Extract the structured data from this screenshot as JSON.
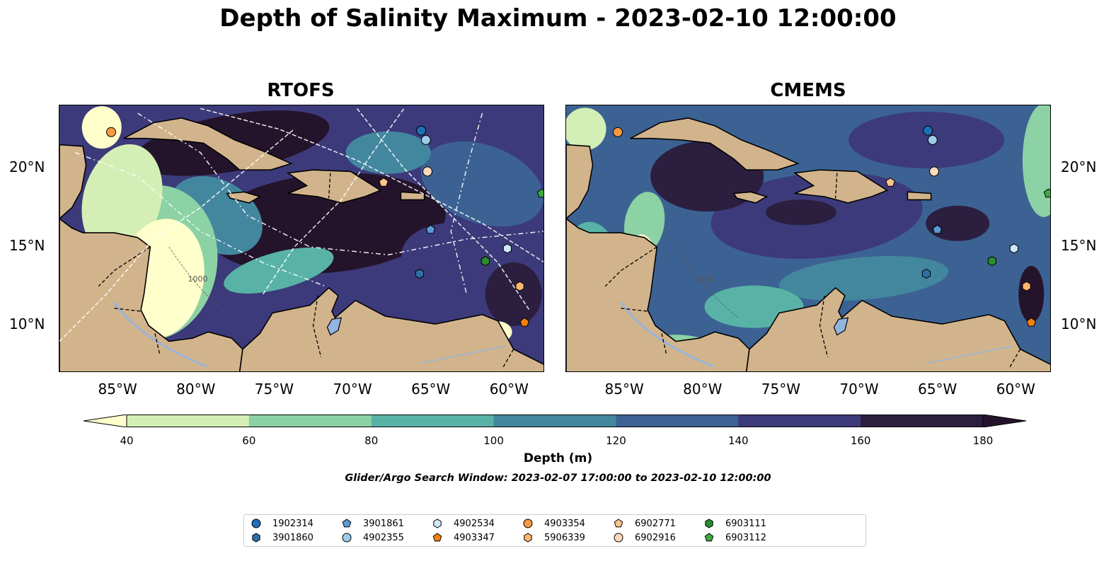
{
  "title": "Depth of Salinity Maximum - 2023-02-10 12:00:00",
  "panels": [
    {
      "name": "RTOFS"
    },
    {
      "name": "CMEMS"
    }
  ],
  "x_ticks": [
    "85°W",
    "80°W",
    "75°W",
    "70°W",
    "65°W",
    "60°W"
  ],
  "y_ticks": [
    "20°N",
    "15°N",
    "10°N"
  ],
  "map_extent": {
    "lon": [
      -89,
      -58
    ],
    "lat": [
      7,
      24
    ]
  },
  "contour_label": "1000",
  "colorbar": {
    "levels": [
      40,
      60,
      80,
      100,
      120,
      140,
      160,
      180
    ],
    "tick_labels": [
      "40",
      "60",
      "80",
      "100",
      "120",
      "140",
      "160",
      "180"
    ],
    "colors": [
      "#ffffcc",
      "#d4efb5",
      "#8cd2a4",
      "#58b3a6",
      "#43879e",
      "#3c6293",
      "#3c3a7a",
      "#2b1e3e",
      "#24142b"
    ],
    "label": "Depth (m)"
  },
  "search_window": "Glider/Argo Search Window: 2023-02-07 17:00:00 to 2023-02-10 12:00:00",
  "floats": [
    {
      "id": "1902314",
      "marker": "circle",
      "color": "#1f6fb4",
      "lon": -65.9,
      "lat": 22.4
    },
    {
      "id": "3901860",
      "marker": "hexagon",
      "color": "#2f6fa8",
      "lon": -66.0,
      "lat": 13.3
    },
    {
      "id": "3901861",
      "marker": "pentagon",
      "color": "#5b9bd5",
      "lon": -65.3,
      "lat": 16.1
    },
    {
      "id": "4902355",
      "marker": "circle",
      "color": "#9ccbeb",
      "lon": -65.6,
      "lat": 21.8
    },
    {
      "id": "4902534",
      "marker": "hexagon",
      "color": "#cfe6f6",
      "lon": -60.4,
      "lat": 14.9
    },
    {
      "id": "4903347",
      "marker": "pentagon",
      "color": "#f4800e",
      "lon": -59.3,
      "lat": 10.2
    },
    {
      "id": "4903354",
      "marker": "circle",
      "color": "#f79a3f",
      "lon": -85.7,
      "lat": 22.3
    },
    {
      "id": "5906339",
      "marker": "hexagon",
      "color": "#fbb66e",
      "lon": -59.6,
      "lat": 12.5
    },
    {
      "id": "6902771",
      "marker": "pentagon",
      "color": "#fdc38d",
      "lon": -68.3,
      "lat": 19.1
    },
    {
      "id": "6902916",
      "marker": "circle",
      "color": "#fdd9bc",
      "lon": -65.5,
      "lat": 19.8
    },
    {
      "id": "6903111",
      "marker": "hexagon",
      "color": "#2b8d2b",
      "lon": -61.8,
      "lat": 14.1
    },
    {
      "id": "6903112",
      "marker": "pentagon",
      "color": "#3fa83f",
      "lon": -58.2,
      "lat": 18.4
    }
  ]
}
